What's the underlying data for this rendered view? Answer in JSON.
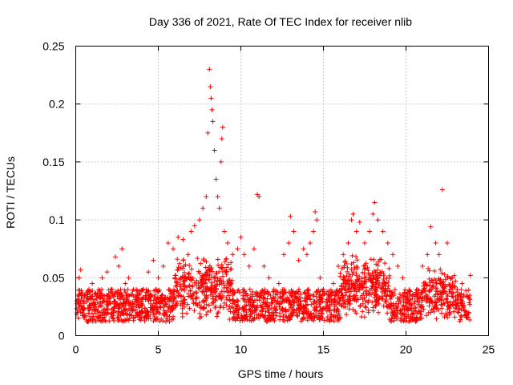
{
  "chart_data": {
    "type": "scatter",
    "title": "Day 336 of 2021, Rate Of TEC Index for receiver nlib",
    "xlabel": "GPS time / hours",
    "ylabel": "ROTI / TECUs",
    "xlim": [
      0,
      25
    ],
    "ylim": [
      0,
      0.25
    ],
    "xticks": [
      0,
      5,
      10,
      15,
      20,
      25
    ],
    "xtick_labels": [
      "0",
      "5",
      "10",
      "15",
      "20",
      "25"
    ],
    "yticks": [
      0,
      0.05,
      0.1,
      0.15,
      0.2,
      0.25
    ],
    "ytick_labels": [
      "0",
      "0.05",
      "0.1",
      "0.15",
      "0.2",
      "0.25"
    ],
    "grid": true,
    "marker": "+",
    "color": "#ff0000",
    "series": [
      {
        "name": "ROTI",
        "x": [
          0.1,
          0.2,
          0.3,
          0.5,
          0.8,
          1.0,
          1.3,
          1.6,
          1.9,
          2.2,
          2.4,
          2.6,
          2.8,
          3.0,
          3.2,
          3.5,
          3.8,
          4.1,
          4.4,
          4.7,
          5.0,
          5.3,
          5.6,
          5.9,
          6.2,
          6.5,
          6.8,
          7.0,
          7.2,
          7.5,
          7.7,
          7.9,
          8.0,
          8.1,
          8.15,
          8.2,
          8.25,
          8.3,
          8.4,
          8.5,
          8.6,
          8.7,
          8.8,
          8.85,
          8.9,
          9.0,
          9.2,
          9.5,
          9.8,
          10.0,
          10.2,
          10.5,
          10.8,
          11.0,
          11.1,
          11.4,
          11.7,
          12.0,
          12.3,
          12.6,
          12.9,
          13.0,
          13.2,
          13.5,
          13.8,
          14.0,
          14.2,
          14.4,
          14.5,
          14.6,
          14.8,
          15.0,
          15.3,
          15.6,
          15.9,
          16.2,
          16.5,
          16.7,
          16.8,
          17.0,
          17.2,
          17.5,
          17.8,
          18.0,
          18.1,
          18.3,
          18.6,
          18.9,
          19.2,
          19.5,
          19.8,
          20.1,
          20.4,
          20.7,
          21.0,
          21.3,
          21.5,
          21.8,
          22.0,
          22.2,
          22.5,
          22.8,
          23.1,
          23.4,
          23.7,
          23.9
        ],
        "y": [
          0.02,
          0.05,
          0.057,
          0.03,
          0.04,
          0.045,
          0.035,
          0.05,
          0.055,
          0.04,
          0.068,
          0.06,
          0.075,
          0.045,
          0.05,
          0.04,
          0.035,
          0.04,
          0.055,
          0.065,
          0.05,
          0.06,
          0.08,
          0.075,
          0.085,
          0.083,
          0.07,
          0.09,
          0.095,
          0.1,
          0.11,
          0.12,
          0.175,
          0.23,
          0.215,
          0.205,
          0.195,
          0.185,
          0.16,
          0.135,
          0.12,
          0.11,
          0.15,
          0.17,
          0.18,
          0.09,
          0.08,
          0.07,
          0.075,
          0.085,
          0.07,
          0.06,
          0.075,
          0.122,
          0.12,
          0.06,
          0.05,
          0.04,
          0.045,
          0.07,
          0.08,
          0.103,
          0.09,
          0.065,
          0.075,
          0.07,
          0.08,
          0.09,
          0.107,
          0.1,
          0.05,
          0.04,
          0.035,
          0.045,
          0.06,
          0.07,
          0.08,
          0.1,
          0.105,
          0.09,
          0.098,
          0.08,
          0.09,
          0.105,
          0.115,
          0.1,
          0.09,
          0.08,
          0.07,
          0.06,
          0.05,
          0.03,
          0.035,
          0.04,
          0.06,
          0.07,
          0.094,
          0.08,
          0.07,
          0.126,
          0.08,
          0.05,
          0.04,
          0.045,
          0.035,
          0.052
        ]
      }
    ]
  }
}
